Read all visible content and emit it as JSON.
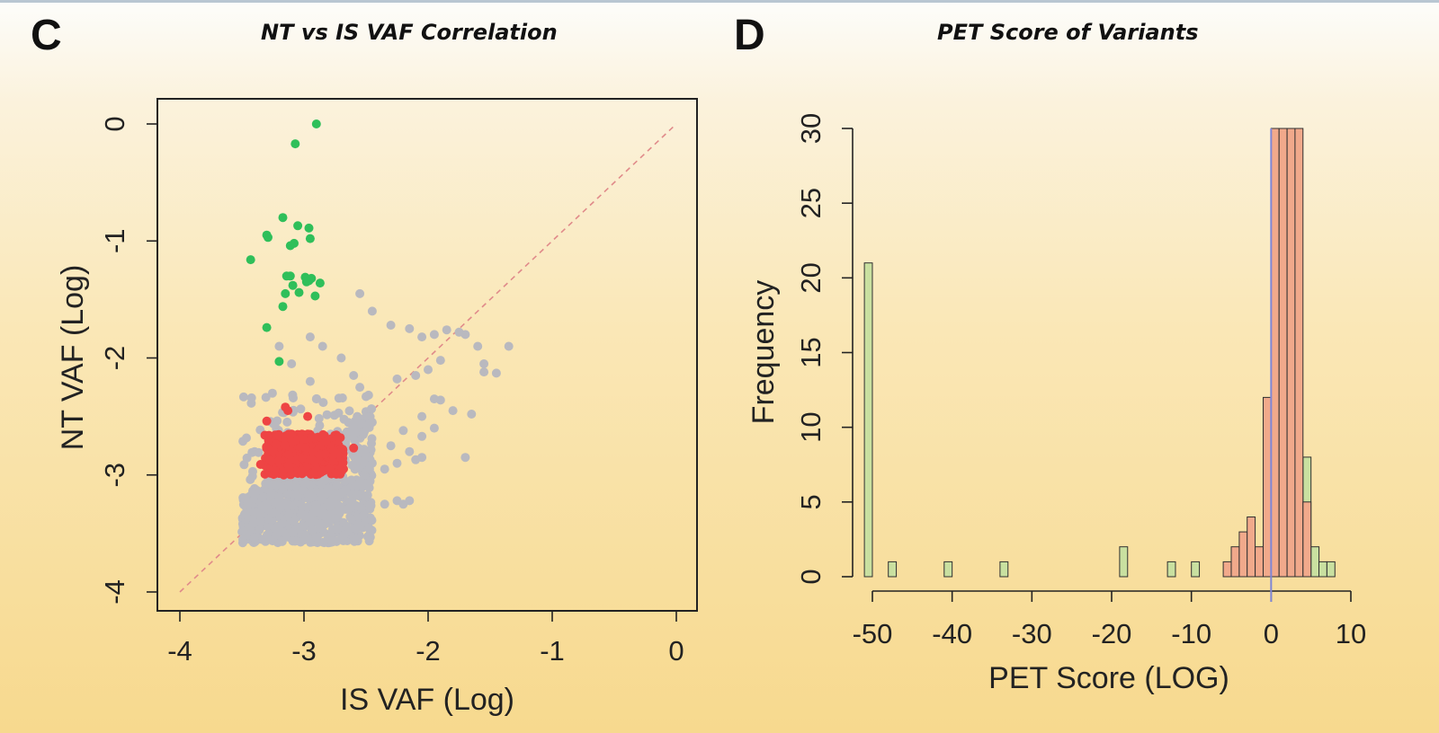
{
  "panels": {
    "c": {
      "letter": "C",
      "title": "NT vs IS VAF Correlation"
    },
    "d": {
      "letter": "D",
      "title": "PET Score of Variants"
    }
  },
  "chart_data": [
    {
      "type": "scatter",
      "title": "NT vs IS VAF Correlation",
      "xlabel": "IS VAF (Log)",
      "ylabel": "NT VAF (Log)",
      "xlim": [
        -4,
        0
      ],
      "ylim": [
        -4,
        0
      ],
      "xticks": [
        "-4",
        "-3",
        "-2",
        "-1",
        "0"
      ],
      "yticks": [
        "-4",
        "-3",
        "-2",
        "-1",
        "0"
      ],
      "reference_line": {
        "from": [
          -4,
          -4
        ],
        "to": [
          0,
          0
        ],
        "style": "dashed",
        "color": "#e08a8a"
      },
      "colors": {
        "green": "#2fbf5a",
        "red": "#ee4444",
        "gray": "#b9b9bf"
      },
      "series": [
        {
          "color": "green",
          "points": [
            [
              -2.9,
              0.0
            ],
            [
              -3.07,
              -0.17
            ],
            [
              -3.17,
              -0.8
            ],
            [
              -3.05,
              -0.87
            ],
            [
              -2.96,
              -0.89
            ],
            [
              -3.29,
              -0.97
            ],
            [
              -3.3,
              -0.95
            ],
            [
              -3.11,
              -1.04
            ],
            [
              -3.08,
              -1.02
            ],
            [
              -2.95,
              -0.98
            ],
            [
              -3.43,
              -1.16
            ],
            [
              -3.14,
              -1.3
            ],
            [
              -3.11,
              -1.3
            ],
            [
              -2.99,
              -1.31
            ],
            [
              -2.96,
              -1.34
            ],
            [
              -2.94,
              -1.32
            ],
            [
              -2.87,
              -1.36
            ],
            [
              -3.09,
              -1.38
            ],
            [
              -2.98,
              -1.35
            ],
            [
              -3.15,
              -1.45
            ],
            [
              -3.04,
              -1.44
            ],
            [
              -2.91,
              -1.47
            ],
            [
              -3.17,
              -1.56
            ],
            [
              -3.3,
              -1.74
            ],
            [
              -3.2,
              -2.03
            ]
          ]
        },
        {
          "color": "red",
          "points": [
            [
              -3.3,
              -2.54
            ],
            [
              -3.15,
              -2.42
            ],
            [
              -3.13,
              -2.45
            ],
            [
              -2.97,
              -2.5
            ],
            [
              -2.78,
              -2.77
            ],
            [
              -2.76,
              -2.79
            ],
            [
              -2.83,
              -2.82
            ],
            [
              -3.35,
              -2.91
            ],
            [
              -3.25,
              -2.8
            ],
            [
              -2.6,
              -2.77
            ],
            [
              -3.1,
              -2.65
            ]
          ],
          "cluster": {
            "x": [
              -3.32,
              -2.68
            ],
            "y": [
              -3.0,
              -2.65
            ]
          }
        },
        {
          "color": "gray",
          "points": [
            [
              -2.55,
              -1.45
            ],
            [
              -2.45,
              -1.6
            ],
            [
              -2.3,
              -1.72
            ],
            [
              -2.15,
              -1.75
            ],
            [
              -2.05,
              -1.82
            ],
            [
              -1.95,
              -1.8
            ],
            [
              -1.85,
              -1.76
            ],
            [
              -1.75,
              -1.78
            ],
            [
              -1.7,
              -1.8
            ],
            [
              -1.6,
              -1.9
            ],
            [
              -1.35,
              -1.9
            ],
            [
              -1.55,
              -2.05
            ],
            [
              -1.45,
              -2.13
            ],
            [
              -1.55,
              -2.12
            ],
            [
              -1.9,
              -2.02
            ],
            [
              -2.0,
              -2.1
            ],
            [
              -2.1,
              -2.15
            ],
            [
              -2.25,
              -2.18
            ],
            [
              -1.95,
              -2.35
            ],
            [
              -1.9,
              -2.36
            ],
            [
              -1.8,
              -2.45
            ],
            [
              -1.65,
              -2.48
            ],
            [
              -2.05,
              -2.5
            ],
            [
              -1.95,
              -2.6
            ],
            [
              -2.2,
              -2.62
            ],
            [
              -2.05,
              -2.67
            ],
            [
              -2.45,
              -2.55
            ],
            [
              -2.3,
              -2.75
            ],
            [
              -2.15,
              -2.8
            ],
            [
              -2.1,
              -2.87
            ],
            [
              -2.05,
              -2.85
            ],
            [
              -2.25,
              -2.9
            ],
            [
              -1.7,
              -2.85
            ],
            [
              -2.35,
              -2.95
            ],
            [
              -2.45,
              -2.9
            ],
            [
              -2.95,
              -1.82
            ],
            [
              -2.85,
              -1.9
            ],
            [
              -2.7,
              -2.0
            ],
            [
              -3.2,
              -1.9
            ],
            [
              -3.1,
              -2.05
            ],
            [
              -2.95,
              -2.2
            ],
            [
              -2.6,
              -2.15
            ],
            [
              -2.55,
              -2.25
            ],
            [
              -2.5,
              -2.33
            ],
            [
              -2.9,
              -2.35
            ],
            [
              -2.15,
              -3.22
            ],
            [
              -2.25,
              -3.22
            ],
            [
              -2.35,
              -3.25
            ],
            [
              -2.2,
              -3.25
            ],
            [
              -3.45,
              -3.25
            ]
          ],
          "cluster": {
            "x": [
              -3.5,
              -2.45
            ],
            "y": [
              -3.58,
              -2.3
            ]
          }
        }
      ]
    },
    {
      "type": "bar",
      "title": "PET Score of Variants",
      "xlabel": "PET Score (LOG)",
      "ylabel": "Frequency",
      "xlim": [
        -52,
        10
      ],
      "ylim": [
        0,
        30
      ],
      "xticks": [
        "-50",
        "-40",
        "-30",
        "-20",
        "-10",
        "0",
        "10"
      ],
      "yticks": [
        "0",
        "5",
        "10",
        "15",
        "20",
        "25",
        "30"
      ],
      "bin_width": 1,
      "colors": {
        "green": "#c9e0a0",
        "red": "#f1a98b",
        "outline": "#303030",
        "zero_line": "#7f86d6"
      },
      "series": [
        {
          "name": "",
          "color": "green",
          "bins": [
            {
              "x": -51,
              "value": 21
            },
            {
              "x": -48,
              "value": 1
            },
            {
              "x": -41,
              "value": 1
            },
            {
              "x": -34,
              "value": 1
            },
            {
              "x": -19,
              "value": 2
            },
            {
              "x": -13,
              "value": 1
            },
            {
              "x": -10,
              "value": 1
            },
            {
              "x": 4,
              "value": 8
            },
            {
              "x": 5,
              "value": 2
            },
            {
              "x": 6,
              "value": 1
            },
            {
              "x": 7,
              "value": 1
            }
          ]
        },
        {
          "name": "",
          "color": "red",
          "bins": [
            {
              "x": -6,
              "value": 1
            },
            {
              "x": -5,
              "value": 2
            },
            {
              "x": -4,
              "value": 3
            },
            {
              "x": -3,
              "value": 4
            },
            {
              "x": -2,
              "value": 2
            },
            {
              "x": -1,
              "value": 12
            },
            {
              "x": 0,
              "value": 31
            },
            {
              "x": 1,
              "value": 31
            },
            {
              "x": 2,
              "value": 31
            },
            {
              "x": 3,
              "value": 31
            },
            {
              "x": 4,
              "value": 5
            }
          ],
          "clipped_above": 30
        }
      ]
    }
  ]
}
